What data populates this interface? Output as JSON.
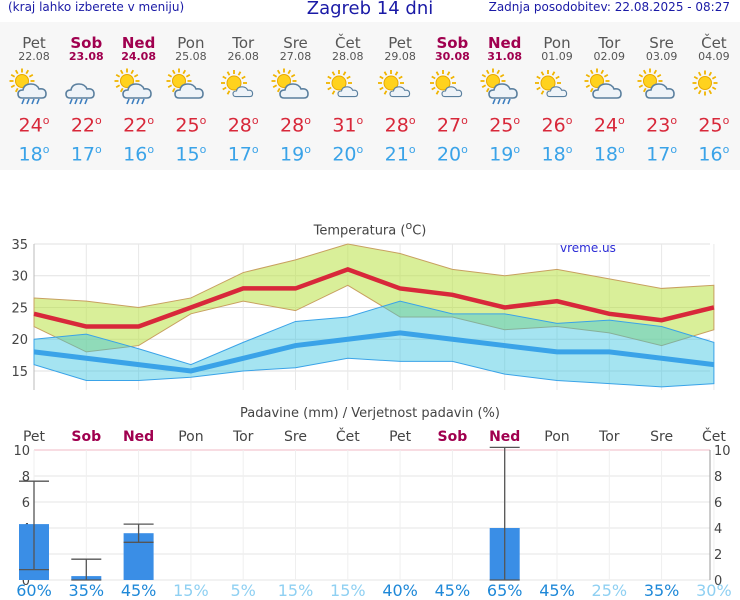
{
  "header": {
    "left_note": "(kraj lahko izberete v meniju)",
    "title": "Zagreb 14 dni",
    "updated": "Zadnja posodobitev: 22.08.2025 - 08:27"
  },
  "days": [
    {
      "name": "Pet",
      "date": "22.08",
      "weekend": false,
      "icon": "sun-cloud-rain-icon",
      "tmax": "24",
      "tmin": "18"
    },
    {
      "name": "Sob",
      "date": "23.08",
      "weekend": true,
      "icon": "cloud-rain-icon",
      "tmax": "22",
      "tmin": "17"
    },
    {
      "name": "Ned",
      "date": "24.08",
      "weekend": true,
      "icon": "sun-cloud-rain-icon",
      "tmax": "22",
      "tmin": "16"
    },
    {
      "name": "Pon",
      "date": "25.08",
      "weekend": false,
      "icon": "sun-cloud-icon",
      "tmax": "25",
      "tmin": "15"
    },
    {
      "name": "Tor",
      "date": "26.08",
      "weekend": false,
      "icon": "sun-small-cloud-icon",
      "tmax": "28",
      "tmin": "17"
    },
    {
      "name": "Sre",
      "date": "27.08",
      "weekend": false,
      "icon": "sun-cloud-icon",
      "tmax": "28",
      "tmin": "19"
    },
    {
      "name": "Čet",
      "date": "28.08",
      "weekend": false,
      "icon": "sun-small-cloud-icon",
      "tmax": "31",
      "tmin": "20"
    },
    {
      "name": "Pet",
      "date": "29.08",
      "weekend": false,
      "icon": "sun-small-cloud-icon",
      "tmax": "28",
      "tmin": "21"
    },
    {
      "name": "Sob",
      "date": "30.08",
      "weekend": true,
      "icon": "sun-small-cloud-icon",
      "tmax": "27",
      "tmin": "20"
    },
    {
      "name": "Ned",
      "date": "31.08",
      "weekend": true,
      "icon": "sun-cloud-rain-icon",
      "tmax": "25",
      "tmin": "19"
    },
    {
      "name": "Pon",
      "date": "01.09",
      "weekend": false,
      "icon": "sun-small-cloud-icon",
      "tmax": "26",
      "tmin": "18"
    },
    {
      "name": "Tor",
      "date": "02.09",
      "weekend": false,
      "icon": "sun-cloud-icon",
      "tmax": "24",
      "tmin": "18"
    },
    {
      "name": "Sre",
      "date": "03.09",
      "weekend": false,
      "icon": "sun-cloud-icon",
      "tmax": "23",
      "tmin": "17"
    },
    {
      "name": "Čet",
      "date": "04.09",
      "weekend": false,
      "icon": "sun-icon",
      "tmax": "25",
      "tmin": "16"
    }
  ],
  "colors": {
    "max": "#d8283a",
    "min": "#3aa3e8",
    "bar": "#3a8ee6",
    "weekend": "#a0004f"
  },
  "chart_data": [
    {
      "type": "line",
      "title": "Temperatura (°C)",
      "watermark": "vreme.us",
      "ylim": [
        12,
        35
      ],
      "yticks": [
        15,
        20,
        25,
        30,
        35
      ],
      "grid": true,
      "series": [
        {
          "name": "max",
          "values": [
            24,
            22,
            22,
            25,
            28,
            28,
            31,
            28,
            27,
            25,
            26,
            24,
            23,
            25
          ]
        },
        {
          "name": "max-upper",
          "values": [
            26.5,
            26,
            25,
            26.5,
            30.5,
            32.5,
            35,
            33.5,
            31,
            30,
            31,
            29.5,
            28,
            28.5
          ]
        },
        {
          "name": "max-lower",
          "values": [
            22,
            18,
            19,
            24,
            26,
            24.5,
            28.5,
            23.5,
            23.5,
            21.5,
            22,
            21,
            19,
            21.5
          ]
        },
        {
          "name": "min",
          "values": [
            18,
            17,
            16,
            15,
            17,
            19,
            20,
            21,
            20,
            19,
            18,
            18,
            17,
            16
          ]
        },
        {
          "name": "min-upper",
          "values": [
            20,
            20.8,
            18.5,
            16,
            19.5,
            22.8,
            23.5,
            26,
            24,
            24,
            22.5,
            23,
            22,
            19.5
          ]
        },
        {
          "name": "min-lower",
          "values": [
            16,
            13.5,
            13.5,
            14,
            15,
            15.5,
            17,
            16.5,
            16.5,
            14.5,
            13.5,
            13,
            12.5,
            13
          ]
        }
      ]
    },
    {
      "type": "bar",
      "title": "Padavine (mm) / Verjetnost padavin (%)",
      "ylim": [
        0,
        10
      ],
      "yticks": [
        0,
        2,
        4,
        6,
        8,
        10
      ],
      "values": [
        4.3,
        0.3,
        3.6,
        0,
        0,
        0,
        0,
        0,
        0,
        4.0,
        0,
        0,
        0,
        0
      ],
      "error_high": [
        7.6,
        1.6,
        4.3,
        0,
        0,
        0,
        0,
        0,
        0,
        10.2,
        0,
        0,
        0,
        0
      ],
      "error_low": [
        0.8,
        0,
        2.9,
        0,
        0,
        0,
        0,
        0,
        0,
        0,
        0,
        0,
        0,
        0
      ],
      "probability": [
        "60%",
        "35%",
        "45%",
        "15%",
        "5%",
        "15%",
        "15%",
        "40%",
        "45%",
        "65%",
        "45%",
        "25%",
        "35%",
        "30%"
      ]
    }
  ]
}
